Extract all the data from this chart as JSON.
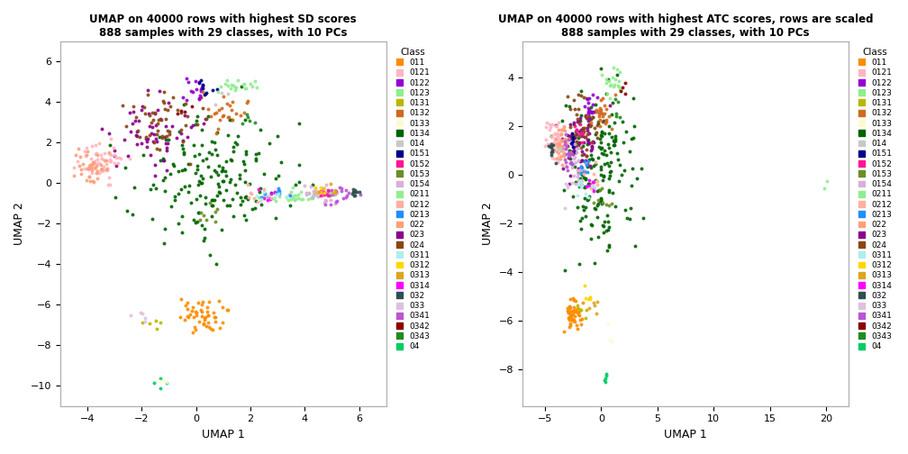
{
  "title1": "UMAP on 40000 rows with highest SD scores\n888 samples with 29 classes, with 10 PCs",
  "title2": "UMAP on 40000 rows with highest ATC scores, rows are scaled\n888 samples with 29 classes, with 10 PCs",
  "xlabel": "UMAP 1",
  "ylabel": "UMAP 2",
  "classes": [
    "011",
    "0121",
    "0122",
    "0123",
    "0131",
    "0132",
    "0133",
    "0134",
    "014",
    "0151",
    "0152",
    "0153",
    "0154",
    "0211",
    "0212",
    "0213",
    "022",
    "023",
    "024",
    "0311",
    "0312",
    "0313",
    "0314",
    "032",
    "033",
    "0341",
    "0342",
    "0343",
    "04"
  ],
  "colors": [
    "#FF8C00",
    "#FFB6C1",
    "#9400D3",
    "#90EE90",
    "#BDB76B",
    "#D2691E",
    "#FFFACD",
    "#006400",
    "#000000",
    "#00008B",
    "#FF1493",
    "#6B8E23",
    "#FFB6C1",
    "#98FB98",
    "#FFB6C1",
    "#1E90FF",
    "#FFA07A",
    "#8B0000",
    "#8B4513",
    "#AFEEEE",
    "#FFD700",
    "#DAA520",
    "#FF00FF",
    "#2F4F4F",
    "#DDA0DD",
    "#BA55D3",
    "#8B0000",
    "#228B22",
    "#00FA9A"
  ],
  "plot1_xlim": [
    -5,
    7
  ],
  "plot1_ylim": [
    -11,
    7
  ],
  "plot2_xlim": [
    -7,
    22
  ],
  "plot2_ylim": [
    -9.5,
    5.5
  ]
}
